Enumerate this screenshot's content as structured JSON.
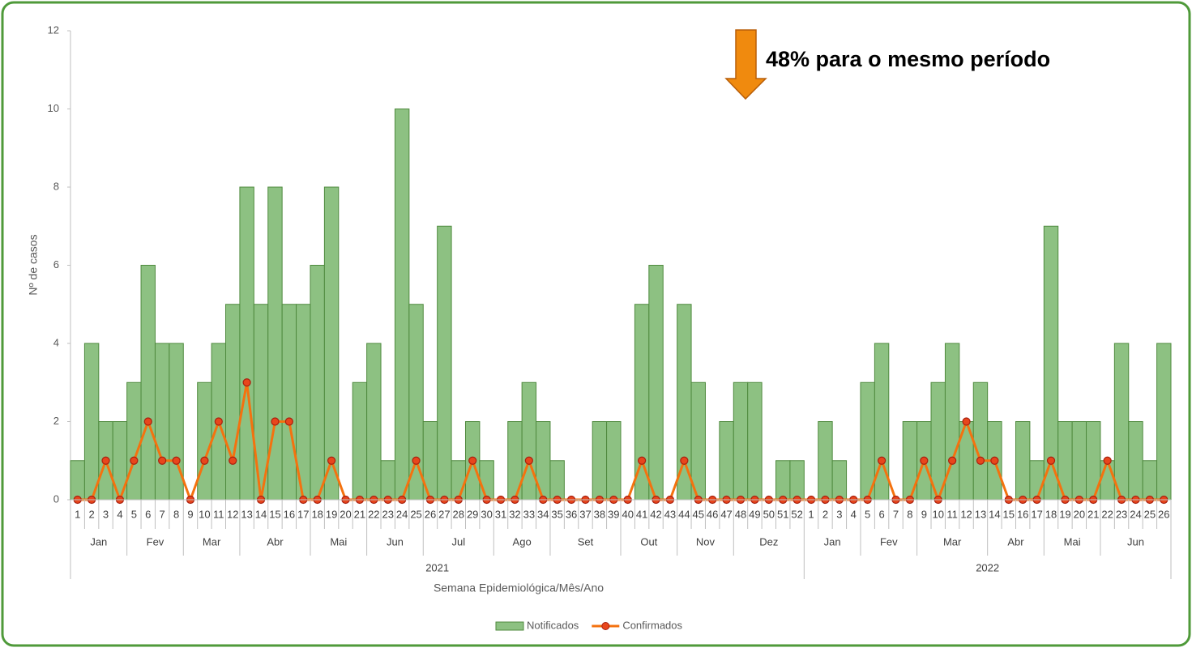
{
  "chart_data": {
    "type": "combo",
    "annotation": "48% para o mesmo período",
    "x_label": "Semana Epidemiológica/Mês/Ano",
    "y_label": "Nº de casos",
    "categories": [
      "1",
      "2",
      "3",
      "4",
      "5",
      "6",
      "7",
      "8",
      "9",
      "10",
      "11",
      "12",
      "13",
      "14",
      "15",
      "16",
      "17",
      "18",
      "19",
      "20",
      "21",
      "22",
      "23",
      "24",
      "25",
      "26",
      "27",
      "28",
      "29",
      "30",
      "31",
      "32",
      "33",
      "34",
      "35",
      "36",
      "37",
      "38",
      "39",
      "40",
      "41",
      "42",
      "43",
      "44",
      "45",
      "46",
      "47",
      "48",
      "49",
      "50",
      "51",
      "52",
      "1",
      "2",
      "3",
      "4",
      "5",
      "6",
      "7",
      "8",
      "9",
      "10",
      "11",
      "12",
      "13",
      "14",
      "15",
      "16",
      "17",
      "18",
      "19",
      "20",
      "21",
      "22",
      "23",
      "24",
      "25",
      "26"
    ],
    "months": [
      "Jan",
      "Jan",
      "Jan",
      "Jan",
      "Fev",
      "Fev",
      "Fev",
      "Fev",
      "Mar",
      "Mar",
      "Mar",
      "Mar",
      "Abr",
      "Abr",
      "Abr",
      "Abr",
      "Abr",
      "Mai",
      "Mai",
      "Mai",
      "Mai",
      "Jun",
      "Jun",
      "Jun",
      "Jun",
      "Jul",
      "Jul",
      "Jul",
      "Jul",
      "Jul",
      "Ago",
      "Ago",
      "Ago",
      "Ago",
      "Set",
      "Set",
      "Set",
      "Set",
      "Set",
      "Out",
      "Out",
      "Out",
      "Out",
      "Nov",
      "Nov",
      "Nov",
      "Nov",
      "Dez",
      "Dez",
      "Dez",
      "Dez",
      "Dez",
      "Jan",
      "Jan",
      "Jan",
      "Jan",
      "Fev",
      "Fev",
      "Fev",
      "Fev",
      "Mar",
      "Mar",
      "Mar",
      "Mar",
      "Mar",
      "Abr",
      "Abr",
      "Abr",
      "Abr",
      "Mai",
      "Mai",
      "Mai",
      "Mai",
      "Jun",
      "Jun",
      "Jun",
      "Jun",
      "Jun"
    ],
    "years": [
      "2021",
      "2021",
      "2021",
      "2021",
      "2021",
      "2021",
      "2021",
      "2021",
      "2021",
      "2021",
      "2021",
      "2021",
      "2021",
      "2021",
      "2021",
      "2021",
      "2021",
      "2021",
      "2021",
      "2021",
      "2021",
      "2021",
      "2021",
      "2021",
      "2021",
      "2021",
      "2021",
      "2021",
      "2021",
      "2021",
      "2021",
      "2021",
      "2021",
      "2021",
      "2021",
      "2021",
      "2021",
      "2021",
      "2021",
      "2021",
      "2021",
      "2021",
      "2021",
      "2021",
      "2021",
      "2021",
      "2021",
      "2021",
      "2021",
      "2021",
      "2021",
      "2021",
      "2022",
      "2022",
      "2022",
      "2022",
      "2022",
      "2022",
      "2022",
      "2022",
      "2022",
      "2022",
      "2022",
      "2022",
      "2022",
      "2022",
      "2022",
      "2022",
      "2022",
      "2022",
      "2022",
      "2022",
      "2022",
      "2022",
      "2022",
      "2022",
      "2022",
      "2022"
    ],
    "series": [
      {
        "name": "Notificados",
        "type": "bar",
        "color": "#8dc182",
        "edge_color": "#4f8a3e",
        "values": [
          1,
          4,
          2,
          2,
          3,
          6,
          4,
          4,
          0,
          3,
          4,
          5,
          8,
          5,
          8,
          5,
          5,
          6,
          8,
          0,
          3,
          4,
          1,
          10,
          5,
          2,
          7,
          1,
          2,
          1,
          0,
          2,
          3,
          2,
          1,
          0,
          0,
          2,
          2,
          0,
          5,
          6,
          0,
          5,
          3,
          0,
          2,
          3,
          3,
          0,
          1,
          1,
          0,
          2,
          1,
          0,
          3,
          4,
          0,
          2,
          2,
          3,
          4,
          2,
          3,
          2,
          0,
          2,
          1,
          7,
          2,
          2,
          2,
          1,
          4,
          2,
          1,
          4
        ]
      },
      {
        "name": "Confirmados",
        "type": "line",
        "color": "#f4720f",
        "marker_color": "#e8461c",
        "marker_edge": "#a8200f",
        "values": [
          0,
          0,
          1,
          0,
          1,
          2,
          1,
          1,
          0,
          1,
          2,
          1,
          3,
          0,
          2,
          2,
          0,
          0,
          1,
          0,
          0,
          0,
          0,
          0,
          1,
          0,
          0,
          0,
          1,
          0,
          0,
          0,
          1,
          0,
          0,
          0,
          0,
          0,
          0,
          0,
          1,
          0,
          0,
          1,
          0,
          0,
          0,
          0,
          0,
          0,
          0,
          0,
          0,
          0,
          0,
          0,
          0,
          1,
          0,
          0,
          1,
          0,
          1,
          2,
          1,
          1,
          0,
          0,
          0,
          1,
          0,
          0,
          0,
          1,
          0,
          0,
          0,
          0
        ]
      }
    ],
    "ylim": [
      0,
      12
    ],
    "yticks": [
      0,
      2,
      4,
      6,
      8,
      10,
      12
    ],
    "legend": "bottom"
  }
}
